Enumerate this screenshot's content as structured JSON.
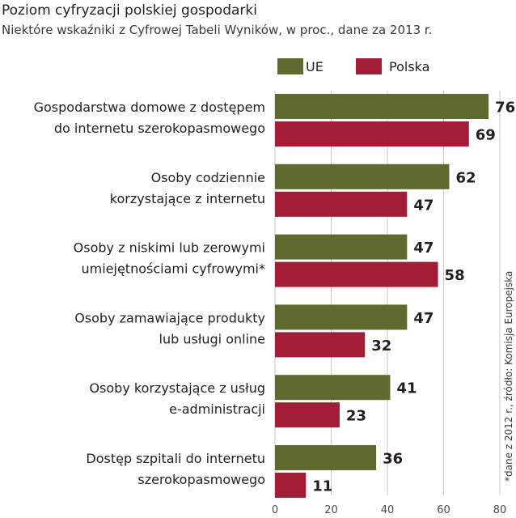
{
  "chart_data": {
    "type": "bar",
    "orientation": "horizontal",
    "title": "Poziom cyfryzacji polskiej gospodarki",
    "subtitle": "Niektóre wskaźniki z Cyfrowej Tabeli Wyników, w proc., dane za 2013 r.",
    "categories": [
      [
        "Gospodarstwa domowe z dostępem",
        "do internetu szerokopasmowego"
      ],
      [
        "Osoby codziennie",
        "korzystające z internetu"
      ],
      [
        "Osoby z niskimi lub zerowymi",
        "umiejętnościami cyfrowymi*"
      ],
      [
        "Osoby zamawiające produkty",
        "lub usługi online"
      ],
      [
        "Osoby korzystające z usług",
        "e-administracji"
      ],
      [
        "Dostęp szpitali do internetu",
        "szerokopasmowego"
      ]
    ],
    "series": [
      {
        "name": "UE",
        "color": "#5f6a2e",
        "values": [
          76,
          62,
          47,
          47,
          41,
          36
        ]
      },
      {
        "name": "Polska",
        "color": "#a01d35",
        "values": [
          69,
          47,
          58,
          32,
          23,
          11
        ]
      }
    ],
    "xlim": [
      0,
      80
    ],
    "xticks": [
      0,
      20,
      40,
      60,
      80
    ],
    "grid": true,
    "legend": "top",
    "source_note": "*dane z 2012 r., źródło: Komisja Europejska"
  }
}
